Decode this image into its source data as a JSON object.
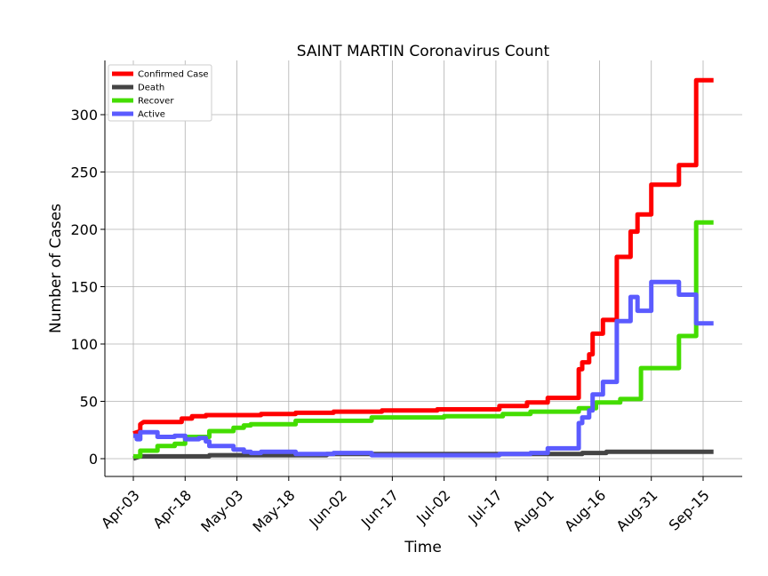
{
  "chart_data": {
    "type": "line",
    "title": "SAINT MARTIN Coronavirus Count",
    "xlabel": "Time",
    "ylabel": "Number of Cases",
    "x_tick_labels": [
      "Apr-03",
      "Apr-18",
      "May-03",
      "May-18",
      "Jun-02",
      "Jun-17",
      "Jul-02",
      "Jul-17",
      "Aug-01",
      "Aug-16",
      "Aug-31",
      "Sep-15"
    ],
    "y_ticks": [
      0,
      50,
      100,
      150,
      200,
      250,
      300
    ],
    "ylim": [
      -15,
      346
    ],
    "grid": true,
    "legend_position": "top-left",
    "series": [
      {
        "name": "Confirmed Case",
        "color": "#ff0000",
        "points": [
          [
            "Apr-03",
            22
          ],
          [
            "Apr-05",
            24
          ],
          [
            "Apr-05",
            30
          ],
          [
            "Apr-06",
            32
          ],
          [
            "Apr-17",
            32
          ],
          [
            "Apr-17",
            35
          ],
          [
            "Apr-20",
            35
          ],
          [
            "Apr-20",
            37
          ],
          [
            "Apr-24",
            37
          ],
          [
            "Apr-24",
            38
          ],
          [
            "May-10",
            38
          ],
          [
            "May-10",
            39
          ],
          [
            "May-20",
            39
          ],
          [
            "May-20",
            40
          ],
          [
            "May-31",
            40
          ],
          [
            "May-31",
            41
          ],
          [
            "Jun-14",
            41
          ],
          [
            "Jun-14",
            42
          ],
          [
            "Jun-30",
            42
          ],
          [
            "Jun-30",
            43
          ],
          [
            "Jul-18",
            43
          ],
          [
            "Jul-18",
            46
          ],
          [
            "Jul-26",
            46
          ],
          [
            "Jul-26",
            49
          ],
          [
            "Aug-01",
            49
          ],
          [
            "Aug-01",
            53
          ],
          [
            "Aug-10",
            53
          ],
          [
            "Aug-10",
            78
          ],
          [
            "Aug-11",
            78
          ],
          [
            "Aug-11",
            84
          ],
          [
            "Aug-13",
            84
          ],
          [
            "Aug-13",
            91
          ],
          [
            "Aug-14",
            91
          ],
          [
            "Aug-14",
            109
          ],
          [
            "Aug-17",
            109
          ],
          [
            "Aug-17",
            121
          ],
          [
            "Aug-21",
            121
          ],
          [
            "Aug-21",
            176
          ],
          [
            "Aug-25",
            176
          ],
          [
            "Aug-25",
            198
          ],
          [
            "Aug-27",
            198
          ],
          [
            "Aug-27",
            213
          ],
          [
            "Aug-31",
            213
          ],
          [
            "Aug-31",
            239
          ],
          [
            "Sep-08",
            239
          ],
          [
            "Sep-08",
            256
          ],
          [
            "Sep-13",
            256
          ],
          [
            "Sep-13",
            330
          ],
          [
            "Sep-18",
            330
          ]
        ]
      },
      {
        "name": "Death",
        "color": "#444444",
        "points": [
          [
            "Apr-03",
            0
          ],
          [
            "Apr-05",
            2
          ],
          [
            "Apr-25",
            2
          ],
          [
            "Apr-25",
            3
          ],
          [
            "May-29",
            3
          ],
          [
            "May-29",
            4
          ],
          [
            "Aug-11",
            4
          ],
          [
            "Aug-11",
            5
          ],
          [
            "Aug-18",
            5
          ],
          [
            "Aug-18",
            6
          ],
          [
            "Sep-08",
            6
          ],
          [
            "Sep-18",
            6
          ]
        ]
      },
      {
        "name": "Recover",
        "color": "#44dd00",
        "points": [
          [
            "Apr-03",
            2
          ],
          [
            "Apr-05",
            2
          ],
          [
            "Apr-05",
            7
          ],
          [
            "Apr-10",
            7
          ],
          [
            "Apr-10",
            11
          ],
          [
            "Apr-15",
            11
          ],
          [
            "Apr-15",
            13
          ],
          [
            "Apr-18",
            13
          ],
          [
            "Apr-18",
            19
          ],
          [
            "Apr-25",
            19
          ],
          [
            "Apr-25",
            24
          ],
          [
            "May-02",
            24
          ],
          [
            "May-02",
            27
          ],
          [
            "May-05",
            27
          ],
          [
            "May-05",
            29
          ],
          [
            "May-07",
            29
          ],
          [
            "May-07",
            30
          ],
          [
            "May-20",
            30
          ],
          [
            "May-20",
            33
          ],
          [
            "Jun-11",
            33
          ],
          [
            "Jun-11",
            36
          ],
          [
            "Jul-02",
            36
          ],
          [
            "Jul-02",
            37
          ],
          [
            "Jul-19",
            37
          ],
          [
            "Jul-19",
            39
          ],
          [
            "Jul-27",
            39
          ],
          [
            "Jul-27",
            41
          ],
          [
            "Aug-10",
            41
          ],
          [
            "Aug-10",
            44
          ],
          [
            "Aug-15",
            44
          ],
          [
            "Aug-15",
            49
          ],
          [
            "Aug-22",
            49
          ],
          [
            "Aug-22",
            52
          ],
          [
            "Aug-28",
            52
          ],
          [
            "Aug-28",
            79
          ],
          [
            "Sep-08",
            79
          ],
          [
            "Sep-08",
            107
          ],
          [
            "Sep-13",
            107
          ],
          [
            "Sep-13",
            206
          ],
          [
            "Sep-18",
            206
          ]
        ]
      },
      {
        "name": "Active",
        "color": "#5b5bff",
        "points": [
          [
            "Apr-03",
            20
          ],
          [
            "Apr-04",
            20
          ],
          [
            "Apr-04",
            17
          ],
          [
            "Apr-05",
            17
          ],
          [
            "Apr-05",
            23
          ],
          [
            "Apr-10",
            23
          ],
          [
            "Apr-10",
            19
          ],
          [
            "Apr-15",
            19
          ],
          [
            "Apr-15",
            20
          ],
          [
            "Apr-18",
            20
          ],
          [
            "Apr-18",
            17
          ],
          [
            "Apr-22",
            17
          ],
          [
            "Apr-22",
            18
          ],
          [
            "Apr-24",
            18
          ],
          [
            "Apr-24",
            15
          ],
          [
            "Apr-25",
            15
          ],
          [
            "Apr-25",
            11
          ],
          [
            "May-02",
            11
          ],
          [
            "May-02",
            8
          ],
          [
            "May-05",
            8
          ],
          [
            "May-05",
            6
          ],
          [
            "May-07",
            6
          ],
          [
            "May-07",
            5
          ],
          [
            "May-10",
            5
          ],
          [
            "May-10",
            6
          ],
          [
            "May-20",
            6
          ],
          [
            "May-20",
            4
          ],
          [
            "May-31",
            4
          ],
          [
            "May-31",
            5
          ],
          [
            "Jun-11",
            5
          ],
          [
            "Jun-11",
            3
          ],
          [
            "Jul-18",
            3
          ],
          [
            "Jul-18",
            4
          ],
          [
            "Jul-27",
            4
          ],
          [
            "Jul-27",
            5
          ],
          [
            "Aug-01",
            5
          ],
          [
            "Aug-01",
            9
          ],
          [
            "Aug-10",
            9
          ],
          [
            "Aug-10",
            31
          ],
          [
            "Aug-11",
            31
          ],
          [
            "Aug-11",
            36
          ],
          [
            "Aug-13",
            36
          ],
          [
            "Aug-13",
            42
          ],
          [
            "Aug-14",
            42
          ],
          [
            "Aug-14",
            56
          ],
          [
            "Aug-17",
            56
          ],
          [
            "Aug-17",
            67
          ],
          [
            "Aug-21",
            67
          ],
          [
            "Aug-21",
            120
          ],
          [
            "Aug-25",
            120
          ],
          [
            "Aug-25",
            141
          ],
          [
            "Aug-27",
            141
          ],
          [
            "Aug-27",
            129
          ],
          [
            "Aug-31",
            129
          ],
          [
            "Aug-31",
            154
          ],
          [
            "Sep-08",
            154
          ],
          [
            "Sep-08",
            143
          ],
          [
            "Sep-13",
            143
          ],
          [
            "Sep-13",
            118
          ],
          [
            "Sep-18",
            118
          ]
        ]
      }
    ]
  }
}
